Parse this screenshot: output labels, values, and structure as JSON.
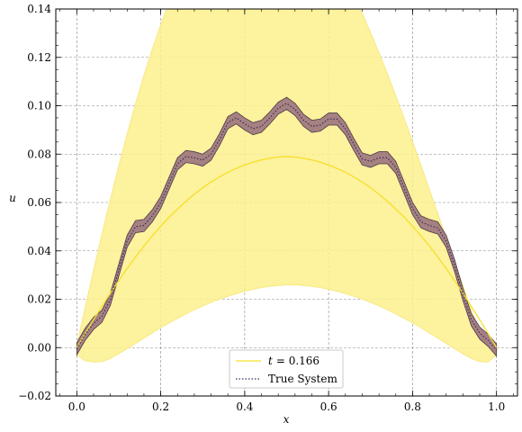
{
  "chart_data": {
    "type": "line",
    "xlabel": "x",
    "ylabel": "u",
    "xlim": [
      -0.05,
      1.05
    ],
    "ylim": [
      -0.02,
      0.14
    ],
    "x_ticks": [
      "0.0",
      "0.2",
      "0.4",
      "0.6",
      "0.8",
      "1.0"
    ],
    "y_ticks": [
      "−0.02",
      "0.00",
      "0.02",
      "0.04",
      "0.06",
      "0.08",
      "0.10",
      "0.12",
      "0.14"
    ],
    "grid": true,
    "legend_position": "bottom-center",
    "x": [
      0.0,
      0.02,
      0.04,
      0.06,
      0.08,
      0.1,
      0.12,
      0.14,
      0.16,
      0.18,
      0.2,
      0.22,
      0.24,
      0.26,
      0.28,
      0.3,
      0.32,
      0.34,
      0.36,
      0.38,
      0.4,
      0.42,
      0.44,
      0.46,
      0.48,
      0.5,
      0.52,
      0.54,
      0.56,
      0.58,
      0.6,
      0.62,
      0.64,
      0.66,
      0.68,
      0.7,
      0.72,
      0.74,
      0.76,
      0.78,
      0.8,
      0.82,
      0.84,
      0.86,
      0.88,
      0.9,
      0.92,
      0.94,
      0.96,
      0.98,
      1.0
    ],
    "series": [
      {
        "name": "t = 0.166",
        "legend_label_prefix": "t",
        "legend_label_value": "= 0.166",
        "color": "#f5e02a",
        "band_color": "#fdf08c",
        "values": [
          0.0,
          0.0058,
          0.0115,
          0.0171,
          0.0225,
          0.0277,
          0.0327,
          0.0375,
          0.042,
          0.0462,
          0.0502,
          0.0539,
          0.0573,
          0.0605,
          0.0634,
          0.0661,
          0.0685,
          0.0706,
          0.0725,
          0.0741,
          0.0755,
          0.0767,
          0.0776,
          0.0783,
          0.0788,
          0.079,
          0.0788,
          0.0783,
          0.0776,
          0.0767,
          0.0755,
          0.0741,
          0.0725,
          0.0706,
          0.0685,
          0.0661,
          0.0634,
          0.0605,
          0.0573,
          0.0539,
          0.0502,
          0.0462,
          0.042,
          0.0375,
          0.0327,
          0.0277,
          0.0225,
          0.0171,
          0.0115,
          0.0058,
          0.0
        ],
        "upper": [
          0.001,
          0.0167,
          0.0321,
          0.047,
          0.0614,
          0.0752,
          0.0884,
          0.1009,
          0.1126,
          0.1235,
          0.1336,
          0.1429,
          0.1513,
          0.1589,
          0.1656,
          0.1715,
          0.1766,
          0.1808,
          0.1841,
          0.1866,
          0.1883,
          0.1892,
          0.1893,
          0.1886,
          0.1872,
          0.185,
          0.1822,
          0.1788,
          0.1747,
          0.17,
          0.1647,
          0.1589,
          0.1525,
          0.1456,
          0.1382,
          0.1303,
          0.122,
          0.1133,
          0.1042,
          0.0948,
          0.0852,
          0.0754,
          0.0655,
          0.0555,
          0.0455,
          0.0355,
          0.0256,
          0.0159,
          0.0065,
          0.0,
          0.0
        ],
        "lower": [
          -0.003,
          -0.0055,
          -0.006,
          -0.0058,
          -0.0045,
          -0.0025,
          -0.0005,
          0.0017,
          0.0039,
          0.0061,
          0.0082,
          0.0102,
          0.0121,
          0.0139,
          0.0156,
          0.0172,
          0.0187,
          0.02,
          0.0212,
          0.0223,
          0.0233,
          0.0241,
          0.0248,
          0.0253,
          0.0257,
          0.0259,
          0.0259,
          0.0257,
          0.0253,
          0.0248,
          0.0241,
          0.0233,
          0.0223,
          0.0212,
          0.02,
          0.0187,
          0.0172,
          0.0156,
          0.0139,
          0.0121,
          0.0102,
          0.0082,
          0.0061,
          0.0039,
          0.0017,
          -0.0005,
          -0.0025,
          -0.0045,
          -0.0058,
          -0.006,
          -0.003
        ]
      },
      {
        "name": "True System",
        "color": "#3d2b5e",
        "band_color": "#a07a80",
        "values": [
          -0.0005,
          0.0055,
          0.01,
          0.013,
          0.02,
          0.032,
          0.044,
          0.05,
          0.0505,
          0.0545,
          0.06,
          0.068,
          0.076,
          0.079,
          0.0785,
          0.0775,
          0.08,
          0.086,
          0.093,
          0.095,
          0.0925,
          0.0905,
          0.0915,
          0.095,
          0.099,
          0.101,
          0.0985,
          0.094,
          0.0915,
          0.092,
          0.0945,
          0.0945,
          0.0905,
          0.084,
          0.078,
          0.077,
          0.0785,
          0.0785,
          0.0745,
          0.066,
          0.0575,
          0.052,
          0.0505,
          0.0495,
          0.044,
          0.034,
          0.022,
          0.0115,
          0.006,
          0.003,
          -0.001
        ],
        "band_halfwidth": 0.0025
      }
    ]
  }
}
